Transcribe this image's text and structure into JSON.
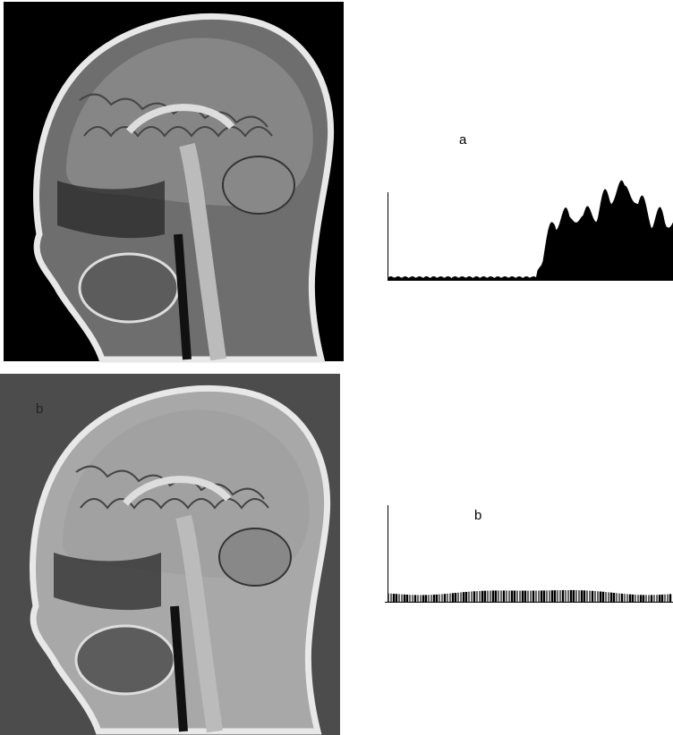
{
  "labels": {
    "histogram_a": "a",
    "image_b": "b",
    "histogram_b": "b"
  }
}
